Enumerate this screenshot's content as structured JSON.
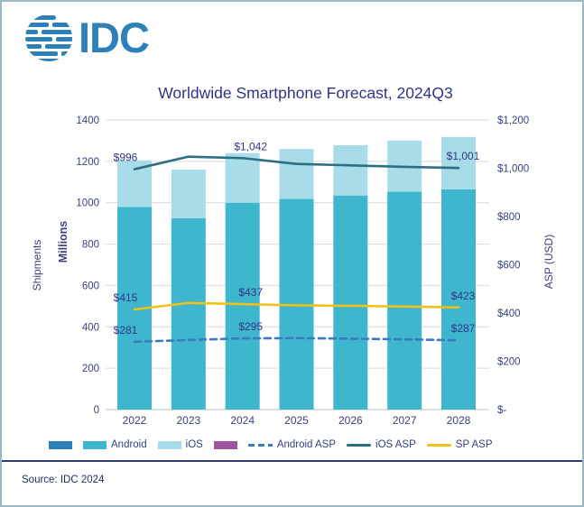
{
  "logo": {
    "text": "IDC"
  },
  "title": "Worldwide Smartphone Forecast, 2024Q3",
  "source": "Source: IDC 2024",
  "colors": {
    "brand_blue": "#2E81B8",
    "android_bar": "#3EB6CD",
    "ios_bar": "#A9DCE9",
    "android_asp_line": "#3D79BE",
    "ios_asp_line": "#2C6F80",
    "sp_asp_line": "#F2C117",
    "legend_purple": "#A3549E",
    "navy_text": "#2F3585",
    "axis_text": "#39417F",
    "gridline": "#D9D9D9"
  },
  "legend": {
    "items": [
      {
        "label": "",
        "type": "bar",
        "color": "#2E81B8"
      },
      {
        "label": "Android",
        "type": "bar",
        "color": "#3EB6CD"
      },
      {
        "label": "iOS",
        "type": "bar",
        "color": "#A9DCE9"
      },
      {
        "label": "",
        "type": "bar",
        "color": "#A3549E"
      },
      {
        "label": "Android ASP",
        "type": "dashed",
        "color": "#3D79BE"
      },
      {
        "label": "iOS ASP",
        "type": "line",
        "color": "#2C6F80"
      },
      {
        "label": "SP ASP",
        "type": "line",
        "color": "#F2C117"
      }
    ]
  },
  "chart_data": {
    "type": "bar",
    "subtype": "stacked-bars-with-lines",
    "title": "Worldwide Smartphone Forecast, 2024Q3",
    "categories": [
      "2022",
      "2023",
      "2024",
      "2025",
      "2026",
      "2027",
      "2028"
    ],
    "left_axis": {
      "title_line1": "Shipments",
      "title_line2": "Millions",
      "min": 0,
      "max": 1400,
      "step": 200,
      "ticks": [
        "1400",
        "1200",
        "1000",
        "800",
        "600",
        "400",
        "200",
        "0"
      ]
    },
    "right_axis": {
      "title": "ASP (USD)",
      "min": 0,
      "max": 1200,
      "ticks": [
        "$1,200",
        "$1,000",
        "$800",
        "$600",
        "$400",
        "$200",
        "$-"
      ]
    },
    "bar_series": [
      {
        "name": "Android",
        "color": "#3EB6CD",
        "values": [
          980,
          925,
          1000,
          1018,
          1035,
          1053,
          1065
        ]
      },
      {
        "name": "iOS",
        "color": "#A9DCE9",
        "values": [
          225,
          235,
          240,
          242,
          243,
          248,
          253
        ]
      }
    ],
    "line_series": [
      {
        "name": "Android ASP",
        "color": "#3D79BE",
        "style": "dashed",
        "values": [
          281,
          288,
          295,
          296,
          294,
          291,
          287
        ],
        "point_labels": {
          "0": "$281",
          "2": "$295",
          "6": "$287"
        }
      },
      {
        "name": "iOS ASP",
        "color": "#2C6F80",
        "style": "solid",
        "values": [
          996,
          1048,
          1042,
          1018,
          1012,
          1006,
          1001
        ],
        "point_labels": {
          "0": "$996",
          "2": "$1,042",
          "6": "$1,001"
        }
      },
      {
        "name": "SP ASP",
        "color": "#F2C117",
        "style": "solid",
        "values": [
          415,
          442,
          437,
          432,
          430,
          427,
          423
        ],
        "point_labels": {
          "0": "$415",
          "2": "$437",
          "6": "$423"
        }
      }
    ],
    "grid": "horizontal",
    "legend_position": "bottom"
  }
}
